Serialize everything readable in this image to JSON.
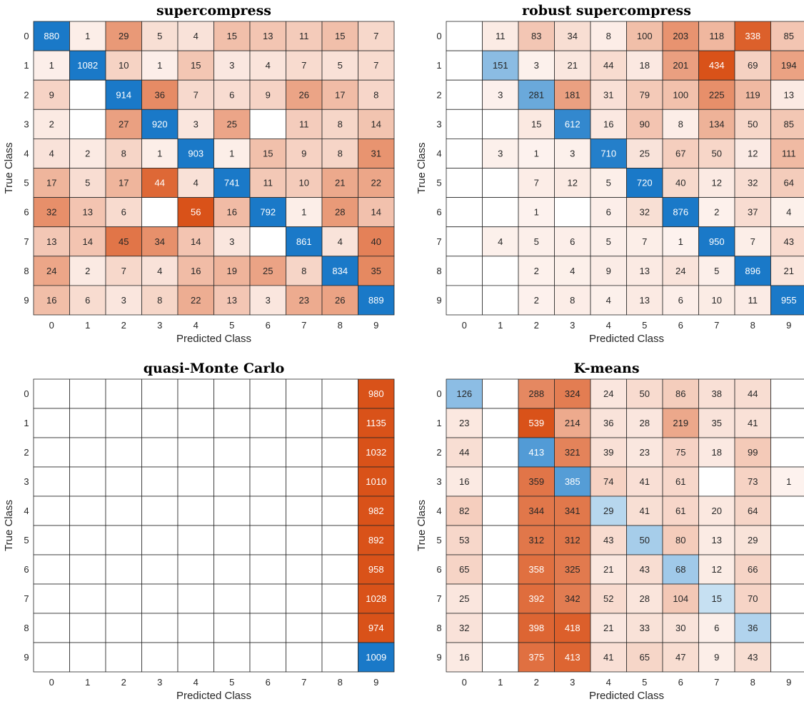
{
  "chart_data": [
    {
      "type": "heatmap",
      "title": "supercompress",
      "xlabel": "Predicted Class",
      "ylabel": "True Class",
      "x_ticks": [
        "0",
        "1",
        "2",
        "3",
        "4",
        "5",
        "6",
        "7",
        "8",
        "9"
      ],
      "y_ticks": [
        "0",
        "1",
        "2",
        "3",
        "4",
        "5",
        "6",
        "7",
        "8",
        "9"
      ],
      "matrix": [
        [
          880,
          1,
          29,
          5,
          4,
          15,
          13,
          11,
          15,
          7
        ],
        [
          1,
          1082,
          10,
          1,
          15,
          3,
          4,
          7,
          5,
          7
        ],
        [
          9,
          null,
          914,
          36,
          7,
          6,
          9,
          26,
          17,
          8
        ],
        [
          2,
          null,
          27,
          920,
          3,
          25,
          null,
          11,
          8,
          14
        ],
        [
          4,
          2,
          8,
          1,
          903,
          1,
          15,
          9,
          8,
          31
        ],
        [
          17,
          5,
          17,
          44,
          4,
          741,
          11,
          10,
          21,
          22
        ],
        [
          32,
          13,
          6,
          null,
          56,
          16,
          792,
          1,
          28,
          14
        ],
        [
          13,
          14,
          45,
          34,
          14,
          3,
          null,
          861,
          4,
          40
        ],
        [
          24,
          2,
          7,
          4,
          16,
          19,
          25,
          8,
          834,
          35
        ],
        [
          16,
          6,
          3,
          8,
          22,
          13,
          3,
          23,
          26,
          889
        ]
      ]
    },
    {
      "type": "heatmap",
      "title": "robust supercompress",
      "xlabel": "Predicted Class",
      "ylabel": "True Class",
      "x_ticks": [
        "0",
        "1",
        "2",
        "3",
        "4",
        "5",
        "6",
        "7",
        "8",
        "9"
      ],
      "y_ticks": [
        "0",
        "1",
        "2",
        "3",
        "4",
        "5",
        "6",
        "7",
        "8",
        "9"
      ],
      "matrix": [
        [
          null,
          11,
          83,
          34,
          8,
          100,
          203,
          118,
          338,
          85
        ],
        [
          null,
          151,
          3,
          21,
          44,
          18,
          201,
          434,
          69,
          194
        ],
        [
          null,
          3,
          281,
          181,
          31,
          79,
          100,
          225,
          119,
          13
        ],
        [
          null,
          null,
          15,
          612,
          16,
          90,
          8,
          134,
          50,
          85
        ],
        [
          null,
          3,
          1,
          3,
          710,
          25,
          67,
          50,
          12,
          111
        ],
        [
          null,
          null,
          7,
          12,
          5,
          720,
          40,
          12,
          32,
          64
        ],
        [
          null,
          null,
          1,
          null,
          6,
          32,
          876,
          2,
          37,
          4
        ],
        [
          null,
          4,
          5,
          6,
          5,
          7,
          1,
          950,
          7,
          43
        ],
        [
          null,
          null,
          2,
          4,
          9,
          13,
          24,
          5,
          896,
          21
        ],
        [
          null,
          null,
          2,
          8,
          4,
          13,
          6,
          10,
          11,
          955
        ]
      ]
    },
    {
      "type": "heatmap",
      "title": "quasi-Monte Carlo",
      "xlabel": "Predicted Class",
      "ylabel": "True Class",
      "x_ticks": [
        "0",
        "1",
        "2",
        "3",
        "4",
        "5",
        "6",
        "7",
        "8",
        "9"
      ],
      "y_ticks": [
        "0",
        "1",
        "2",
        "3",
        "4",
        "5",
        "6",
        "7",
        "8",
        "9"
      ],
      "matrix": [
        [
          null,
          null,
          null,
          null,
          null,
          null,
          null,
          null,
          null,
          980
        ],
        [
          null,
          null,
          null,
          null,
          null,
          null,
          null,
          null,
          null,
          1135
        ],
        [
          null,
          null,
          null,
          null,
          null,
          null,
          null,
          null,
          null,
          1032
        ],
        [
          null,
          null,
          null,
          null,
          null,
          null,
          null,
          null,
          null,
          1010
        ],
        [
          null,
          null,
          null,
          null,
          null,
          null,
          null,
          null,
          null,
          982
        ],
        [
          null,
          null,
          null,
          null,
          null,
          null,
          null,
          null,
          null,
          892
        ],
        [
          null,
          null,
          null,
          null,
          null,
          null,
          null,
          null,
          null,
          958
        ],
        [
          null,
          null,
          null,
          null,
          null,
          null,
          null,
          null,
          null,
          1028
        ],
        [
          null,
          null,
          null,
          null,
          null,
          null,
          null,
          null,
          null,
          974
        ],
        [
          null,
          null,
          null,
          null,
          null,
          null,
          null,
          null,
          null,
          1009
        ]
      ]
    },
    {
      "type": "heatmap",
      "title": "K-means",
      "xlabel": "Predicted Class",
      "ylabel": "True Class",
      "x_ticks": [
        "0",
        "1",
        "2",
        "3",
        "4",
        "5",
        "6",
        "7",
        "8",
        "9"
      ],
      "y_ticks": [
        "0",
        "1",
        "2",
        "3",
        "4",
        "5",
        "6",
        "7",
        "8",
        "9"
      ],
      "matrix": [
        [
          126,
          null,
          288,
          324,
          24,
          50,
          86,
          38,
          44,
          null
        ],
        [
          23,
          null,
          539,
          214,
          36,
          28,
          219,
          35,
          41,
          null
        ],
        [
          44,
          null,
          413,
          321,
          39,
          23,
          75,
          18,
          99,
          null
        ],
        [
          16,
          null,
          359,
          385,
          74,
          41,
          61,
          null,
          73,
          1
        ],
        [
          82,
          null,
          344,
          341,
          29,
          41,
          61,
          20,
          64,
          null
        ],
        [
          53,
          null,
          312,
          312,
          43,
          50,
          80,
          13,
          29,
          null
        ],
        [
          65,
          null,
          358,
          325,
          21,
          43,
          68,
          12,
          66,
          null
        ],
        [
          25,
          null,
          392,
          342,
          52,
          28,
          104,
          15,
          70,
          null
        ],
        [
          32,
          null,
          398,
          418,
          21,
          33,
          30,
          6,
          36,
          null
        ],
        [
          16,
          null,
          375,
          413,
          41,
          65,
          47,
          9,
          43,
          null
        ]
      ]
    }
  ],
  "colors": {
    "correct_low": "#c6e0f2",
    "correct_high": "#1a79c8",
    "error_low": "#fdf3ef",
    "error_high": "#d95219",
    "cell_border": "#262626",
    "text_dark": "#262626",
    "text_light": "#ffffff"
  }
}
